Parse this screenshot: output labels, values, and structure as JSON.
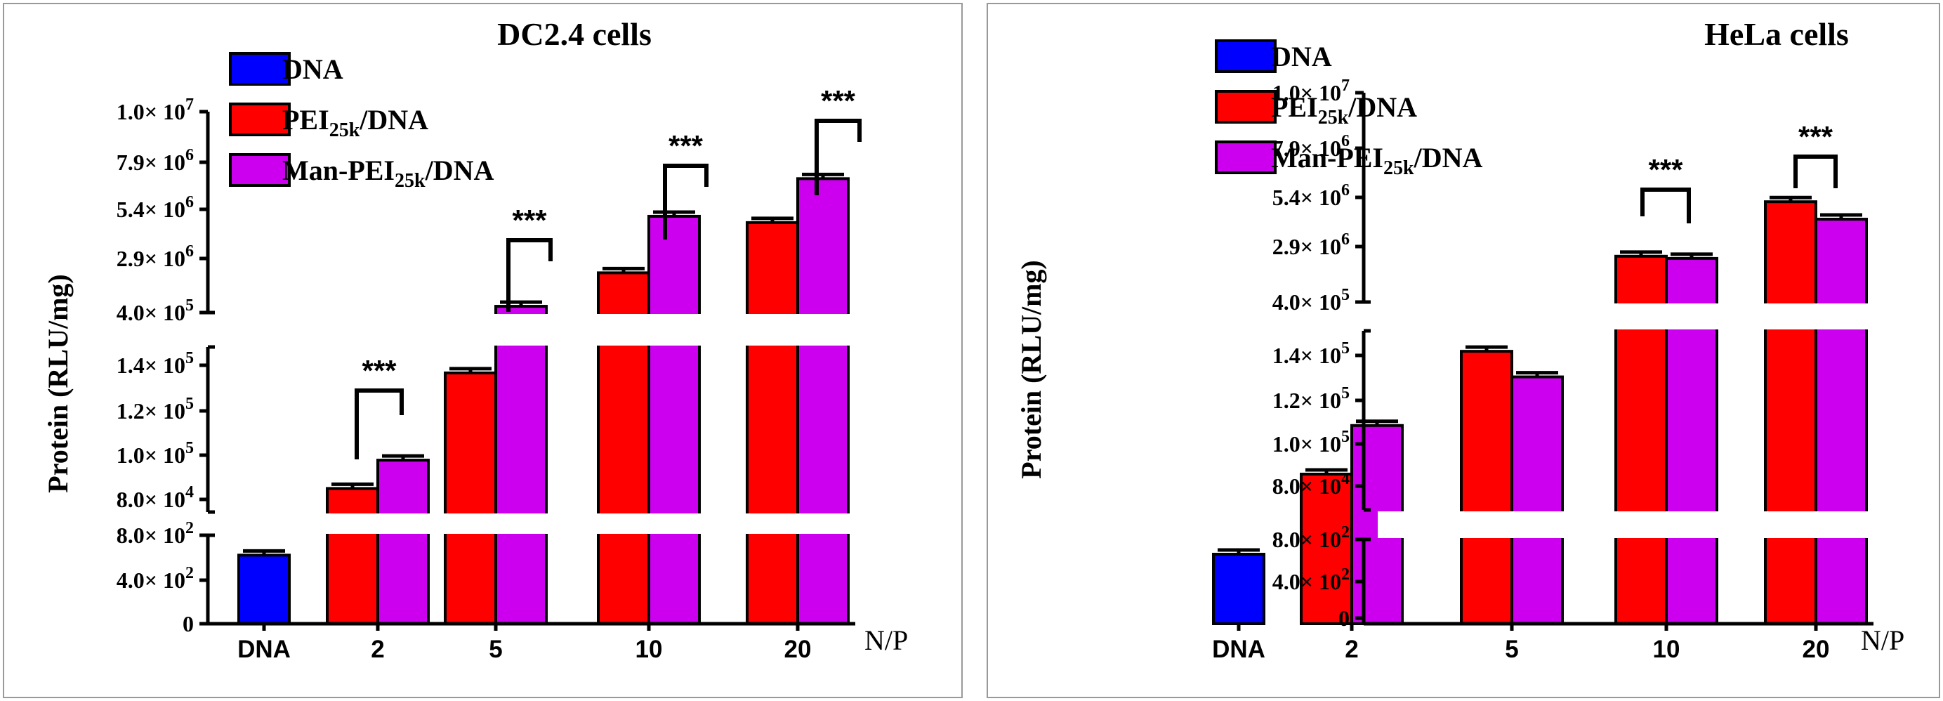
{
  "chart_data": [
    {
      "type": "bar",
      "title": "DC2.4 cells",
      "ylabel": "Protein (RLU/mg)",
      "xlabel": "N/P",
      "categories": [
        "DNA",
        "2",
        "5",
        "10",
        "20"
      ],
      "legend": [
        "DNA",
        "PEI25k/DNA",
        "Man-PEI25k/DNA"
      ],
      "series": [
        {
          "name": "DNA",
          "color": "#0000ff",
          "values": [
            620,
            null,
            null,
            null,
            null
          ]
        },
        {
          "name": "PEI25k/DNA",
          "color": "#ff0000",
          "values": [
            null,
            85000,
            134000,
            2300000,
            4700000
          ]
        },
        {
          "name": "Man-PEI25k/DNA",
          "color": "#cc00ee",
          "values": [
            null,
            97000,
            700000,
            5000000,
            6800000
          ]
        }
      ],
      "significance": [
        {
          "category": "2",
          "label": "***"
        },
        {
          "category": "5",
          "label": "***"
        },
        {
          "category": "10",
          "label": "***"
        },
        {
          "category": "20",
          "label": "***"
        }
      ],
      "ytick_segments": [
        {
          "ticks": [
            "0",
            "4.0× 10^2",
            "8.0× 10^2"
          ]
        },
        {
          "ticks": [
            "8.0× 10^4",
            "1.0× 10^5",
            "1.2× 10^5",
            "1.4× 10^5"
          ]
        },
        {
          "ticks": [
            "4.0× 10^5",
            "2.9× 10^6",
            "5.4× 10^6",
            "7.9× 10^6",
            "1.0× 10^7"
          ]
        }
      ]
    },
    {
      "type": "bar",
      "title": "HeLa cells",
      "ylabel": "Protein (RLU/mg)",
      "xlabel": "N/P",
      "categories": [
        "DNA",
        "2",
        "5",
        "10",
        "20"
      ],
      "legend": [
        "DNA",
        "PEI25k/DNA",
        "Man-PEI25k/DNA"
      ],
      "series": [
        {
          "name": "DNA",
          "color": "#0000ff",
          "values": [
            660,
            null,
            null,
            null,
            null
          ]
        },
        {
          "name": "PEI25k/DNA",
          "color": "#ff0000",
          "values": [
            null,
            89000,
            137000,
            2500000,
            5000000
          ]
        },
        {
          "name": "Man-PEI25k/DNA",
          "color": "#cc00ee",
          "values": [
            null,
            108000,
            127000,
            2400000,
            4200000
          ]
        }
      ],
      "significance": [
        {
          "category": "10",
          "label": "***"
        },
        {
          "category": "20",
          "label": "***"
        }
      ],
      "ytick_segments": [
        {
          "ticks": [
            "0",
            "4.0× 10^2",
            "8.0× 10^2"
          ]
        },
        {
          "ticks": [
            "8.0× 10^4",
            "1.0× 10^5",
            "1.2× 10^5",
            "1.4× 10^5"
          ]
        },
        {
          "ticks": [
            "4.0× 10^5",
            "2.9× 10^6",
            "5.4× 10^6",
            "7.9× 10^6",
            "1.0× 10^7"
          ]
        }
      ]
    }
  ]
}
